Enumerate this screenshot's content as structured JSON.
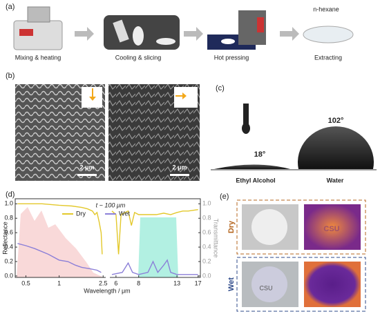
{
  "panels": {
    "a": {
      "label": "(a)",
      "steps": [
        "Mixing & heating",
        "Cooling & slicing",
        "Hot pressing",
        "Extracting"
      ],
      "solvent": "n-hexane"
    },
    "b": {
      "label": "(b)",
      "scale_left": "2 μm",
      "scale_right": "2 μm"
    },
    "c": {
      "label": "(c)",
      "angle_left": "18°",
      "angle_right": "102°",
      "liquid_left": "Ethyl Alcohol",
      "liquid_right": "Water"
    },
    "d": {
      "label": "(d)"
    },
    "e": {
      "label": "(e)",
      "row_top": "Dry",
      "row_bottom": "Wet",
      "mark_top": "CSU",
      "mark_bottom": "CSU"
    }
  },
  "chart_data": {
    "type": "line",
    "annotation": "t ~ 100 μm",
    "ylabel": "Reflectance",
    "y2label": "Transmittance",
    "xlabel": "Wavelength / μm",
    "xscale": "log",
    "xlim_segments": [
      [
        0.4,
        2.6
      ],
      [
        5.6,
        17.5
      ]
    ],
    "xticks": [
      0.5,
      1,
      2.5,
      6,
      8,
      13,
      17
    ],
    "ylim": [
      -0.02,
      1.07
    ],
    "yticks": [
      {
        "value": 0,
        "label": "0.0"
      },
      {
        "value": 0.2,
        "label": "0.2"
      },
      {
        "value": 0.4,
        "label": "0.4"
      },
      {
        "value": 0.6,
        "label": "0.6"
      },
      {
        "value": 0.8,
        "label": "0.8"
      },
      {
        "value": 1,
        "label": "1.0"
      }
    ],
    "y2lim": [
      -0.02,
      1.07
    ],
    "y2ticks": [
      {
        "value": 0,
        "label": "0.0"
      },
      {
        "value": 0.2,
        "label": "0.2"
      },
      {
        "value": 0.4,
        "label": "0.4"
      },
      {
        "value": 0.6,
        "label": "0.6"
      },
      {
        "value": 0.8,
        "label": "0.8"
      },
      {
        "value": 1,
        "label": "1.0"
      }
    ],
    "series": [
      {
        "name": "Dry",
        "color": "#e3c82a",
        "x": [
          0.42,
          0.5,
          0.7,
          1,
          1.3,
          1.6,
          1.8,
          2.0,
          2.1,
          2.2,
          2.3,
          2.4,
          2.45,
          null,
          5.7,
          6.0,
          6.2,
          6.4,
          7.0,
          7.3,
          7.6,
          8,
          9,
          10,
          11,
          12,
          13,
          14,
          15,
          17
        ],
        "values": [
          1.0,
          1.0,
          1.0,
          0.98,
          0.97,
          0.95,
          0.93,
          0.9,
          0.85,
          0.88,
          0.75,
          0.6,
          0.3,
          null,
          0.9,
          0.85,
          0.3,
          0.85,
          0.9,
          0.7,
          0.88,
          0.85,
          0.85,
          0.85,
          0.87,
          0.85,
          0.88,
          0.9,
          0.9,
          0.92
        ]
      },
      {
        "name": "Wet",
        "color": "#8b7fd8",
        "x": [
          0.42,
          0.5,
          0.6,
          0.8,
          1,
          1.2,
          1.4,
          1.6,
          1.9,
          2.2,
          2.4,
          null,
          5.7,
          6.5,
          7.0,
          7.4,
          8,
          9,
          9.6,
          10.2,
          11,
          11.5,
          12,
          13,
          15,
          17
        ],
        "values": [
          0.45,
          0.42,
          0.38,
          0.3,
          0.22,
          0.2,
          0.15,
          0.12,
          0.1,
          0.08,
          0.05,
          null,
          0.02,
          0.05,
          0.18,
          0.05,
          0.02,
          0.05,
          0.2,
          0.05,
          0.15,
          0.22,
          0.05,
          0.02,
          0.02,
          0.02
        ]
      }
    ]
  }
}
